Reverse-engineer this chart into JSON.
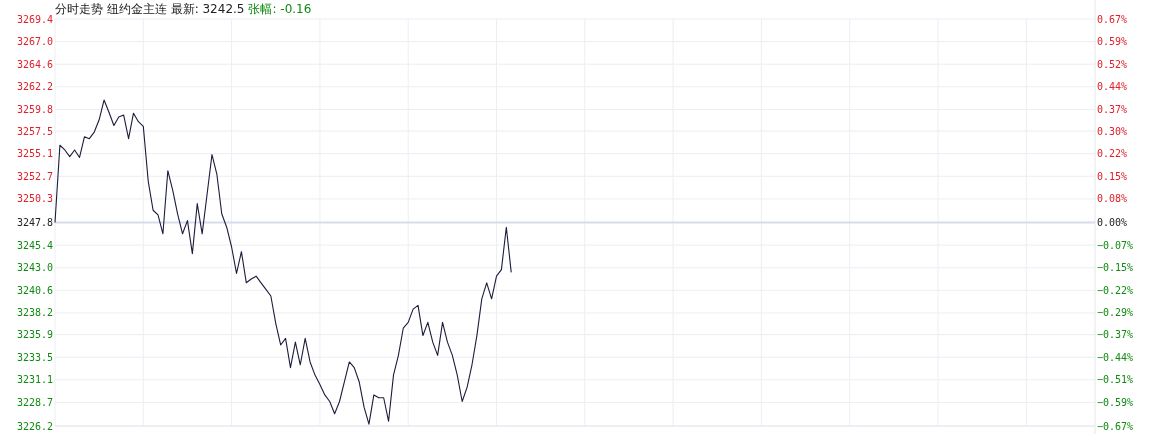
{
  "chart_data": {
    "type": "line",
    "title": "分时走势  纽约金主连 最新: 3242.5",
    "subtitle": "张幅: -0.16",
    "categories": [
      null,
      null,
      null,
      null,
      null,
      null,
      null,
      null,
      null,
      null,
      null,
      null,
      null,
      null,
      null,
      null,
      null,
      null,
      null,
      null,
      null,
      null,
      null,
      null,
      null,
      null,
      null,
      null,
      null,
      null,
      null,
      null,
      null,
      null,
      null,
      null,
      null,
      null,
      null,
      null,
      null,
      null,
      null,
      null,
      null,
      null,
      null,
      null,
      null,
      null,
      null,
      null,
      null,
      null,
      null,
      null,
      null,
      null,
      null,
      null,
      null,
      null,
      null,
      null,
      null,
      null,
      null,
      null,
      null,
      null,
      null,
      null,
      null,
      null,
      null,
      null,
      null,
      null,
      null,
      null,
      null,
      null,
      null,
      null,
      null,
      null,
      null,
      null,
      null,
      null,
      null,
      null,
      null,
      null,
      null,
      null,
      null,
      null,
      null,
      null,
      null,
      null,
      null,
      null,
      null,
      null,
      null,
      null,
      null,
      null,
      null,
      null,
      null,
      null,
      null,
      null,
      null,
      null,
      null,
      null,
      null,
      null,
      null,
      null,
      null,
      null,
      null,
      null,
      null,
      null,
      null,
      null,
      null,
      null,
      null,
      null,
      null,
      null,
      null,
      null,
      null,
      null,
      null,
      null,
      null,
      null,
      null,
      null,
      null,
      null,
      null,
      null,
      null,
      null,
      null,
      null,
      null,
      null,
      null,
      null,
      null,
      null,
      null,
      null,
      null,
      null,
      null,
      null,
      null,
      null,
      null,
      null,
      null,
      null,
      null,
      null,
      null,
      null,
      null,
      null,
      null,
      null,
      null,
      null,
      null,
      null,
      null,
      null,
      null,
      null,
      null,
      null,
      null,
      null,
      null,
      null,
      null,
      null,
      null,
      null,
      null,
      null,
      null,
      null,
      null,
      null,
      null,
      null,
      null,
      null,
      null,
      null
    ],
    "series": [
      {
        "color": "#1c1c3c",
        "values": [
          3247.8,
          3256.0,
          3255.5,
          3254.8,
          3255.5,
          3254.7,
          3256.9,
          3256.7,
          3257.4,
          3258.7,
          3260.8,
          3259.5,
          3258.1,
          3259.0,
          3259.2,
          3256.7,
          3259.4,
          3258.5,
          3258.0,
          3252.2,
          3249.1,
          3248.6,
          3246.6,
          3253.3,
          3251.2,
          3248.7,
          3246.6,
          3248.0,
          3244.5,
          3249.8,
          3246.6,
          3250.8,
          3255.0,
          3252.9,
          3248.7,
          3247.3,
          3245.2,
          3242.4,
          3244.7,
          3241.4,
          3241.8,
          3242.1,
          3241.4,
          3240.7,
          3240.0,
          3237.1,
          3234.8,
          3235.5,
          3232.4,
          3235.1,
          3232.7,
          3235.5,
          3233.0,
          3231.6,
          3230.6,
          3229.5,
          3228.8,
          3227.5,
          3228.8,
          3230.9,
          3233.0,
          3232.4,
          3230.9,
          3228.2,
          3226.4,
          3229.5,
          3229.2,
          3229.2,
          3226.7,
          3231.6,
          3233.7,
          3236.6,
          3237.2,
          3238.6,
          3239.0,
          3235.8,
          3237.2,
          3235.1,
          3233.7,
          3237.2,
          3235.1,
          3233.7,
          3231.6,
          3228.8,
          3230.3,
          3232.7,
          3235.8,
          3239.7,
          3241.4,
          3239.7,
          3242.1,
          3242.8,
          3247.3,
          3242.5,
          null,
          null,
          null,
          null,
          null,
          null,
          null,
          null,
          null,
          null,
          null,
          null,
          null,
          null,
          null,
          null,
          null,
          null,
          null,
          null,
          null,
          null,
          null,
          null,
          null,
          null,
          null,
          null,
          null,
          null,
          null,
          null,
          null,
          null,
          null,
          null,
          null,
          null,
          null,
          null,
          null,
          null,
          null,
          null,
          null,
          null,
          null,
          null,
          null,
          null,
          null,
          null,
          null,
          null,
          null,
          null,
          null,
          null,
          null,
          null,
          null,
          null,
          null,
          null,
          null,
          null,
          null,
          null,
          null,
          null,
          null,
          null,
          null,
          null,
          null,
          null,
          null,
          null,
          null,
          null,
          null,
          null,
          null,
          null,
          null,
          null,
          null,
          null,
          null,
          null,
          null,
          null,
          null,
          null,
          null,
          null,
          null,
          null,
          null,
          null,
          null,
          null,
          null,
          null,
          null,
          null,
          null,
          null,
          null,
          null,
          null,
          null,
          null,
          null,
          null,
          null,
          null,
          null
        ]
      }
    ],
    "ylim": [
      3226.2,
      3269.4
    ],
    "yticks": [
      {
        "value": 3269.4,
        "label": "3269.4"
      },
      {
        "value": 3267.0,
        "label": "3267.0"
      },
      {
        "value": 3264.6,
        "label": "3264.6"
      },
      {
        "value": 3262.2,
        "label": "3262.2"
      },
      {
        "value": 3259.8,
        "label": "3259.8"
      },
      {
        "value": 3257.5,
        "label": "3257.5"
      },
      {
        "value": 3255.1,
        "label": "3255.1"
      },
      {
        "value": 3252.7,
        "label": "3252.7"
      },
      {
        "value": 3250.3,
        "label": "3250.3"
      },
      {
        "value": 3247.8,
        "label": "3247.8"
      },
      {
        "value": 3245.4,
        "label": "3245.4"
      },
      {
        "value": 3243.0,
        "label": "3243.0"
      },
      {
        "value": 3240.6,
        "label": "3240.6"
      },
      {
        "value": 3238.2,
        "label": "3238.2"
      },
      {
        "value": 3235.9,
        "label": "3235.9"
      },
      {
        "value": 3233.5,
        "label": "3233.5"
      },
      {
        "value": 3231.1,
        "label": "3231.1"
      },
      {
        "value": 3228.7,
        "label": "3228.7"
      },
      {
        "value": 3226.2,
        "label": "3226.2"
      }
    ],
    "y2lim": [
      -0.665,
      0.665
    ],
    "y2ticks": [
      {
        "value": 0.665,
        "label": "0.67%"
      },
      {
        "value": 0.591,
        "label": "0.59%"
      },
      {
        "value": 0.517,
        "label": "0.52%"
      },
      {
        "value": 0.443,
        "label": "0.44%"
      },
      {
        "value": 0.369,
        "label": "0.37%"
      },
      {
        "value": 0.298,
        "label": "0.30%"
      },
      {
        "value": 0.225,
        "label": "0.22%"
      },
      {
        "value": 0.151,
        "label": "0.15%"
      },
      {
        "value": 0.077,
        "label": "0.08%"
      },
      {
        "value": 0,
        "label": "0.00%"
      },
      {
        "value": -0.074,
        "label": "−0.07%"
      },
      {
        "value": -0.148,
        "label": "−0.15%"
      },
      {
        "value": -0.222,
        "label": "−0.22%"
      },
      {
        "value": -0.294,
        "label": "−0.29%"
      },
      {
        "value": -0.367,
        "label": "−0.37%"
      },
      {
        "value": -0.44,
        "label": "−0.44%"
      },
      {
        "value": -0.514,
        "label": "−0.51%"
      },
      {
        "value": -0.588,
        "label": "−0.59%"
      },
      {
        "value": -0.665,
        "label": "−0.67%"
      }
    ],
    "ref_lines": [
      {
        "axis": "y",
        "value": 3247.8,
        "color": "#d8dcec"
      }
    ],
    "grid": true,
    "marker": "none",
    "line_style": "solid"
  }
}
